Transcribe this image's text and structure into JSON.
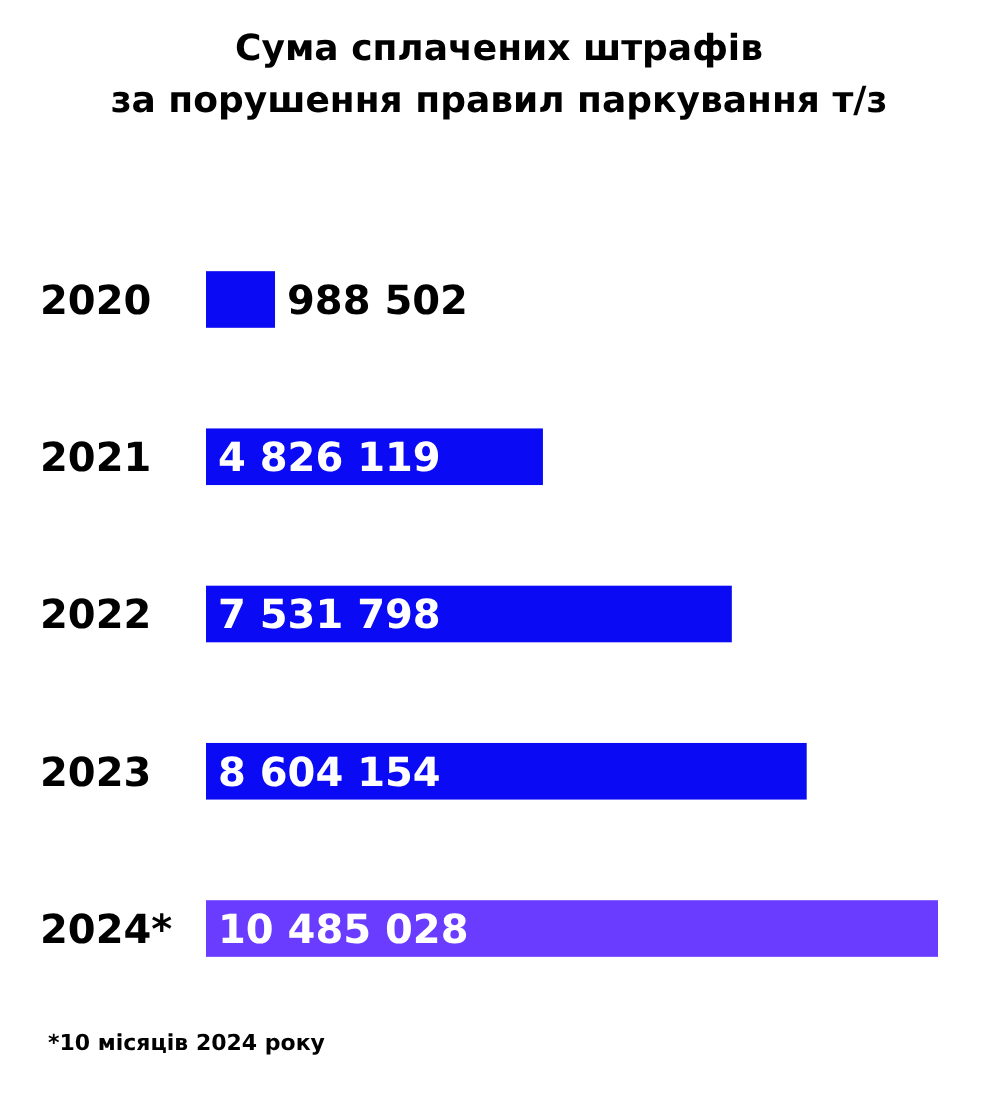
{
  "chart_data": {
    "type": "bar",
    "orientation": "horizontal",
    "title": "Сума сплачених штрафів\nза порушення правил паркування т/з",
    "categories": [
      "2020",
      "2021",
      "2022",
      "2023",
      "2024*"
    ],
    "values": [
      988502,
      4826119,
      7531798,
      8604154,
      10485028
    ],
    "value_labels": [
      "988 502",
      "4 826 119",
      "7 531 798",
      "8 604 154",
      "10 485 028"
    ],
    "colors": [
      "#0a0af5",
      "#0a0af5",
      "#0a0af5",
      "#0a0af5",
      "#6a3cff"
    ],
    "annotations": [
      "*10 місяців 2024 року"
    ]
  }
}
